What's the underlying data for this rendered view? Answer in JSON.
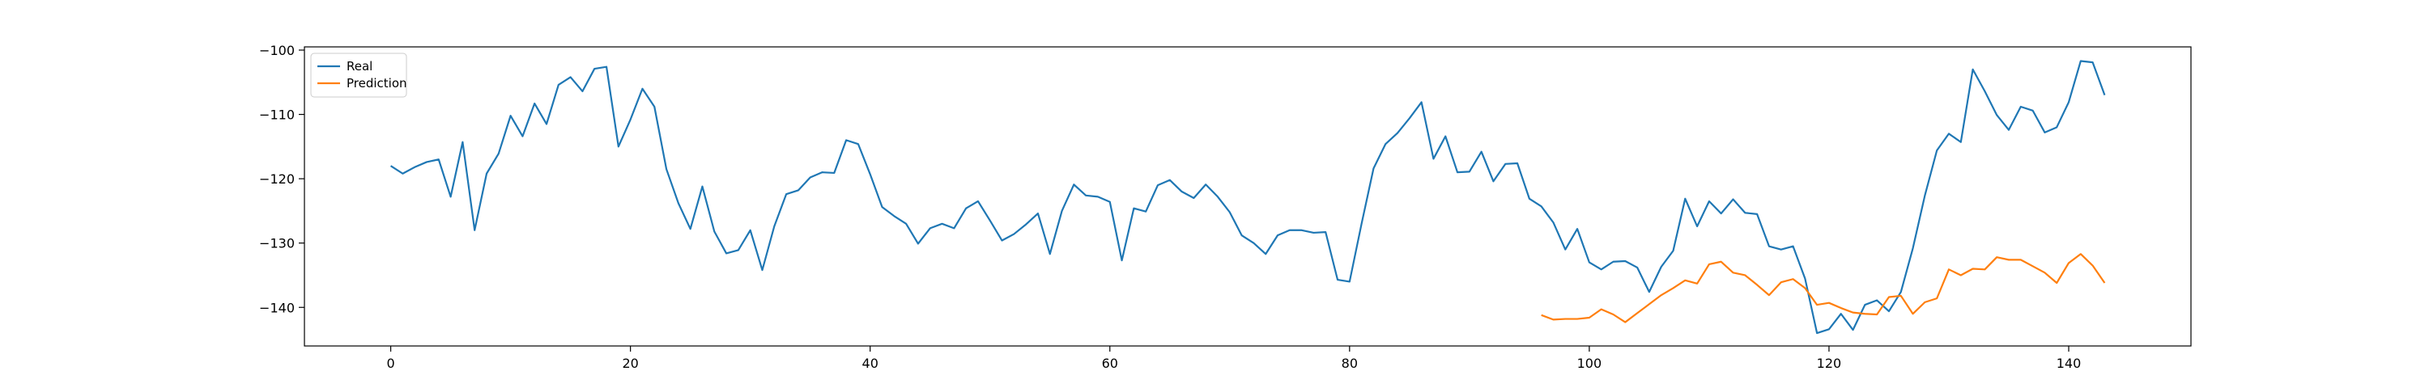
{
  "chart_data": {
    "type": "line",
    "title": "",
    "xlabel": "",
    "ylabel": "",
    "xlim": [
      -7.2,
      150.2
    ],
    "ylim": [
      -146,
      -99.5
    ],
    "xticks": [
      0,
      20,
      40,
      60,
      80,
      100,
      120,
      140
    ],
    "xtick_labels": [
      "0",
      "20",
      "40",
      "60",
      "80",
      "100",
      "120",
      "140"
    ],
    "yticks": [
      -100,
      -110,
      -120,
      -130,
      -140
    ],
    "ytick_labels": [
      "−100",
      "−110",
      "−120",
      "−130",
      "−140"
    ],
    "grid": false,
    "legend_position": "top-left",
    "series": [
      {
        "name": "Real",
        "color": "#1f77b4",
        "x": [
          0,
          1,
          2,
          3,
          4,
          5,
          6,
          7,
          8,
          9,
          10,
          11,
          12,
          13,
          14,
          15,
          16,
          17,
          18,
          19,
          20,
          21,
          22,
          23,
          24,
          25,
          26,
          27,
          28,
          29,
          30,
          31,
          32,
          33,
          34,
          35,
          36,
          37,
          38,
          39,
          40,
          41,
          42,
          43,
          44,
          45,
          46,
          47,
          48,
          49,
          50,
          51,
          52,
          53,
          54,
          55,
          56,
          57,
          58,
          59,
          60,
          61,
          62,
          63,
          64,
          65,
          66,
          67,
          68,
          69,
          70,
          71,
          72,
          73,
          74,
          75,
          76,
          77,
          78,
          79,
          80,
          81,
          82,
          83,
          84,
          85,
          86,
          87,
          88,
          89,
          90,
          91,
          92,
          93,
          94,
          95,
          96,
          97,
          98,
          99,
          100,
          101,
          102,
          103,
          104,
          105,
          106,
          107,
          108,
          109,
          110,
          111,
          112,
          113,
          114,
          115,
          116,
          117,
          118,
          119,
          120,
          121,
          122,
          123,
          124,
          125,
          126,
          127,
          128,
          129,
          130,
          131,
          132,
          133,
          134,
          135,
          136,
          137,
          138,
          139,
          140,
          141,
          142,
          143
        ],
        "values": [
          -118,
          -119.2,
          -118.2,
          -117.4,
          -117,
          -122.8,
          -114.3,
          -128,
          -119.2,
          -116.1,
          -110.2,
          -113.4,
          -108.3,
          -111.5,
          -105.4,
          -104.2,
          -106.4,
          -102.9,
          -102.6,
          -115,
          -110.8,
          -106,
          -108.8,
          -118.5,
          -123.8,
          -127.8,
          -121.2,
          -128.2,
          -131.6,
          -131.1,
          -128,
          -134.2,
          -127.4,
          -122.4,
          -121.8,
          -119.8,
          -119,
          -119.1,
          -114,
          -114.6,
          -119.3,
          -124.4,
          -125.8,
          -127,
          -130.1,
          -127.7,
          -127,
          -127.7,
          -124.6,
          -123.5,
          -126.5,
          -129.6,
          -128.6,
          -127.1,
          -125.4,
          -131.7,
          -125,
          -120.9,
          -122.6,
          -122.8,
          -123.6,
          -132.7,
          -124.6,
          -125.1,
          -121,
          -120.2,
          -122,
          -123,
          -120.9,
          -122.8,
          -125.2,
          -128.8,
          -130,
          -131.7,
          -128.8,
          -128,
          -128,
          -128.4,
          -128.3,
          -135.7,
          -136,
          -127,
          -118.4,
          -114.6,
          -112.9,
          -110.6,
          -108.1,
          -116.9,
          -113.4,
          -119,
          -118.9,
          -115.8,
          -120.4,
          -117.7,
          -117.6,
          -123.1,
          -124.3,
          -126.8,
          -131,
          -127.8,
          -133,
          -134.1,
          -132.9,
          -132.8,
          -133.8,
          -137.6,
          -133.7,
          -131.2,
          -123.1,
          -127.4,
          -123.5,
          -125.4,
          -123.2,
          -125.3,
          -125.5,
          -130.5,
          -131,
          -130.5,
          -135.5,
          -144,
          -143.4,
          -141,
          -143.5,
          -139.6,
          -138.9,
          -140.6,
          -137.6,
          -130.8,
          -122.6,
          -115.6,
          -113,
          -114.3,
          -103,
          -106.4,
          -110.1,
          -112.4,
          -108.8,
          -109.4,
          -112.8,
          -112,
          -108.1,
          -101.7,
          -101.9,
          -107
        ]
      },
      {
        "name": "Prediction",
        "color": "#ff7f0e",
        "x": [
          96,
          97,
          98,
          99,
          100,
          101,
          102,
          103,
          104,
          105,
          106,
          107,
          108,
          109,
          110,
          111,
          112,
          113,
          114,
          115,
          116,
          117,
          118,
          119,
          120,
          121,
          122,
          123,
          124,
          125,
          126,
          127,
          128,
          129,
          130,
          131,
          132,
          133,
          134,
          135,
          136,
          137,
          138,
          139,
          140,
          141,
          142,
          143
        ],
        "values": [
          -141.2,
          -141.9,
          -141.8,
          -141.8,
          -141.6,
          -140.3,
          -141.1,
          -142.3,
          -140.9,
          -139.5,
          -138.1,
          -137,
          -135.8,
          -136.3,
          -133.3,
          -132.9,
          -134.6,
          -135,
          -136.5,
          -138.1,
          -136.1,
          -135.6,
          -137,
          -139.6,
          -139.3,
          -140.1,
          -140.8,
          -141,
          -141.1,
          -138.4,
          -138.2,
          -141,
          -139.2,
          -138.6,
          -134.1,
          -135,
          -134,
          -134.1,
          -132.2,
          -132.6,
          -132.6,
          -133.6,
          -134.6,
          -136.2,
          -133.1,
          -131.7,
          -133.5,
          -136.2
        ]
      }
    ]
  }
}
